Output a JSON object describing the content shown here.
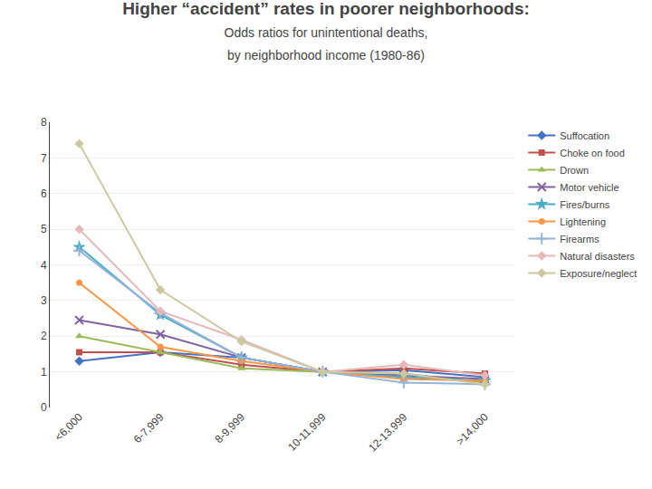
{
  "chart_data": {
    "type": "line",
    "title": "Higher “accident” rates in poorer neighborhoods:",
    "subtitle": "Odds ratios for unintentional deaths,\nby neighborhood income (1980-86)",
    "categories": [
      "<6,000",
      "6-7,999",
      "8-9,999",
      "10-11,999",
      "12-13,999",
      ">14,000"
    ],
    "ylim": [
      0,
      8
    ],
    "yticks": [
      0,
      1,
      2,
      3,
      4,
      5,
      6,
      7,
      8
    ],
    "grid": true,
    "legend": "right",
    "line_style": "solid",
    "series": [
      {
        "name": "Suffocation",
        "color": "#4472C4",
        "marker": "diamond",
        "values": [
          1.3,
          1.55,
          1.4,
          1.0,
          1.05,
          0.85
        ]
      },
      {
        "name": "Choke on food",
        "color": "#C0504D",
        "marker": "square",
        "values": [
          1.55,
          1.55,
          1.2,
          1.0,
          1.1,
          0.95
        ]
      },
      {
        "name": "Drown",
        "color": "#9BBB59",
        "marker": "triangle-up",
        "values": [
          2.0,
          1.55,
          1.1,
          1.0,
          0.95,
          0.7
        ]
      },
      {
        "name": "Motor vehicle",
        "color": "#8064A2",
        "marker": "x",
        "values": [
          2.45,
          2.05,
          1.4,
          1.0,
          0.9,
          0.8
        ]
      },
      {
        "name": "Fires/burns",
        "color": "#4BACC6",
        "marker": "star",
        "values": [
          4.5,
          2.6,
          1.4,
          1.0,
          0.85,
          0.75
        ]
      },
      {
        "name": "Lightening",
        "color": "#F79646",
        "marker": "circle",
        "values": [
          3.5,
          1.7,
          1.3,
          1.0,
          0.8,
          0.75
        ]
      },
      {
        "name": "Firearms",
        "color": "#95B3D7",
        "marker": "plus",
        "values": [
          4.4,
          2.65,
          1.4,
          1.0,
          0.7,
          0.65
        ]
      },
      {
        "name": "Natural disasters",
        "color": "#E6B9B8",
        "marker": "diamond",
        "values": [
          5.0,
          2.7,
          1.9,
          1.0,
          1.2,
          0.9
        ]
      },
      {
        "name": "Exposure/neglect",
        "color": "#CCC9A1",
        "marker": "diamond",
        "values": [
          7.4,
          3.3,
          1.85,
          1.0,
          0.95,
          0.65
        ]
      }
    ]
  }
}
